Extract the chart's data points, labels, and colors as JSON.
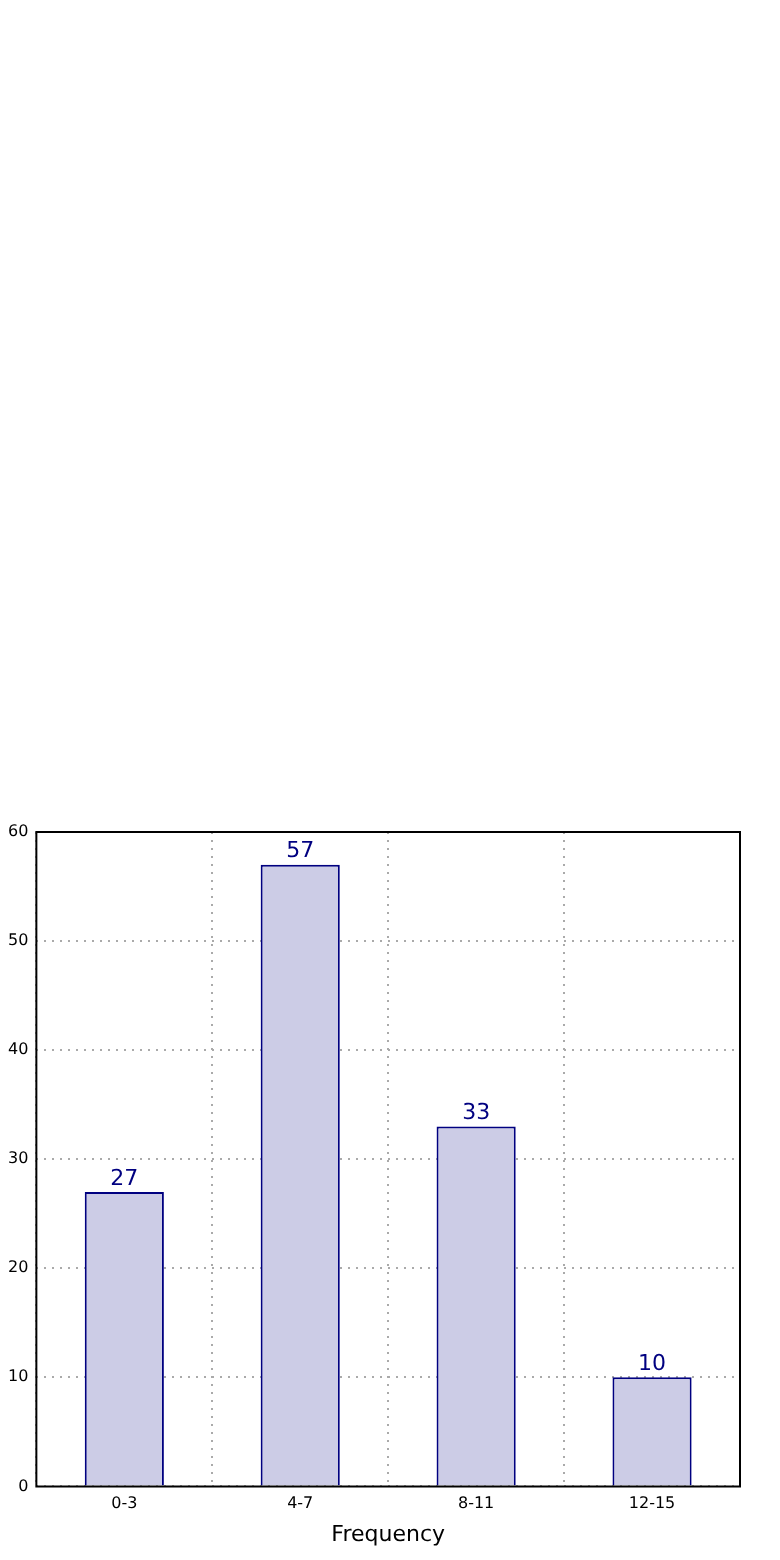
{
  "chart_data": {
    "type": "bar",
    "xlabel": "Frequency",
    "categories": [
      "0-3",
      "4-7",
      "8-11",
      "12-15"
    ],
    "values": [
      27,
      57,
      33,
      10
    ],
    "color": "#cccce6",
    "ylim": [
      0,
      60
    ],
    "yticks": [
      0,
      10,
      20,
      30,
      40,
      50,
      60
    ],
    "grid": true,
    "data_labels": true
  }
}
